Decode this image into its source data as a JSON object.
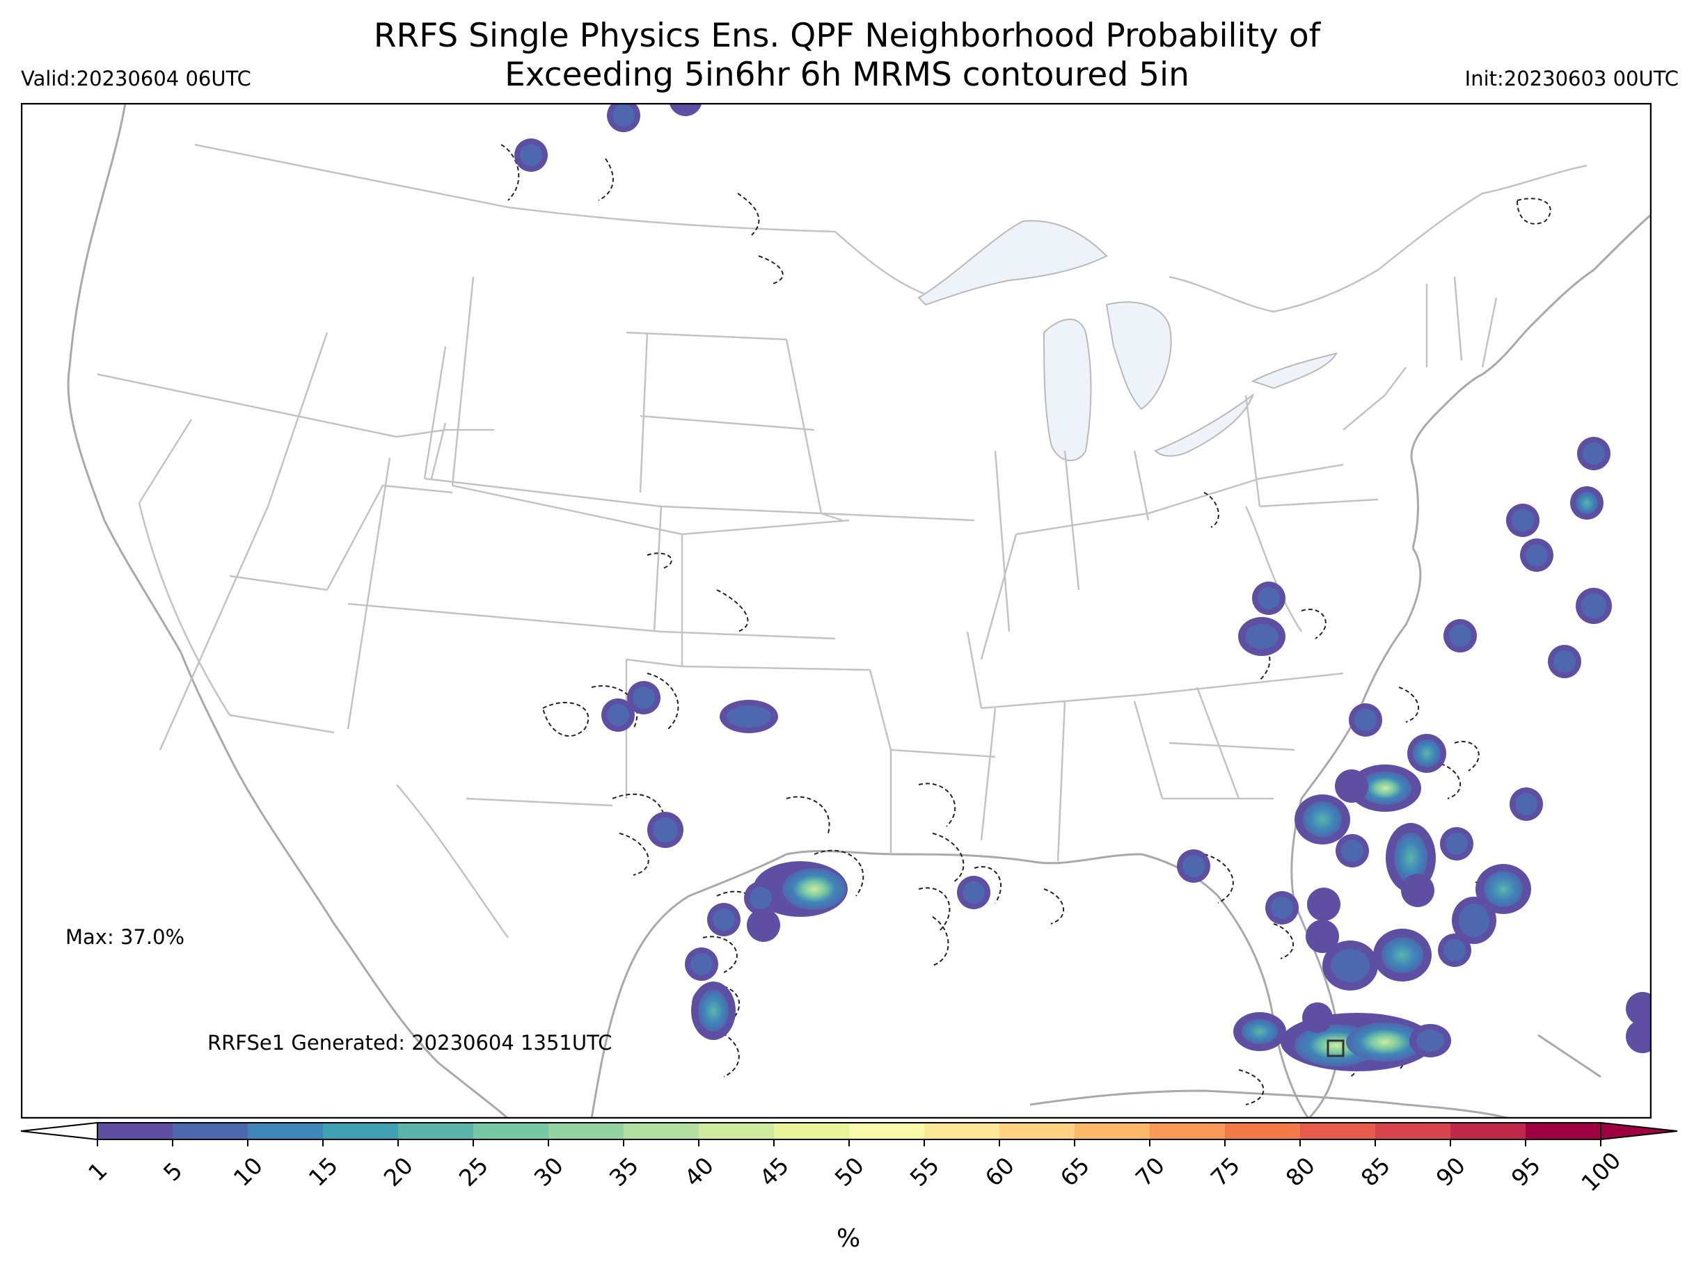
{
  "title": {
    "line1": "RRFS Single Physics Ens. QPF Neighborhood Probability of",
    "line2": "Exceeding 5in6hr 6h MRMS contoured 5in"
  },
  "valid_label": "Valid:20230604 06UTC",
  "init_label": "Init:20230603 00UTC",
  "max_label": "Max: 37.0%",
  "generated_label": "RRFSe1 Generated: 20230604 1351UTC",
  "colorbar": {
    "unit_label": "%",
    "ticks": [
      "1",
      "5",
      "10",
      "15",
      "20",
      "25",
      "30",
      "35",
      "40",
      "45",
      "50",
      "55",
      "60",
      "65",
      "70",
      "75",
      "80",
      "85",
      "90",
      "95",
      "100"
    ],
    "colors": [
      "#5e4fa2",
      "#4d68ae",
      "#3f85b9",
      "#3fa0b4",
      "#5bb6a9",
      "#77c8a4",
      "#94d4a4",
      "#b3e0a2",
      "#cfeb9e",
      "#e8f59b",
      "#f6faa9",
      "#fee999",
      "#fed383",
      "#fdb868",
      "#fa9a58",
      "#f47a4a",
      "#e75b4a",
      "#d8444e",
      "#c0284a",
      "#9e0142"
    ],
    "extend_low_color": "#ffffff",
    "extend_high_color": "#9e0142"
  },
  "map_layers": {
    "land_color": "#ffffff",
    "lake_color": "#eef3f9",
    "border_color": "#bdbdbd",
    "coast_color": "#a9a9a9",
    "contour_color": "#222222"
  }
}
